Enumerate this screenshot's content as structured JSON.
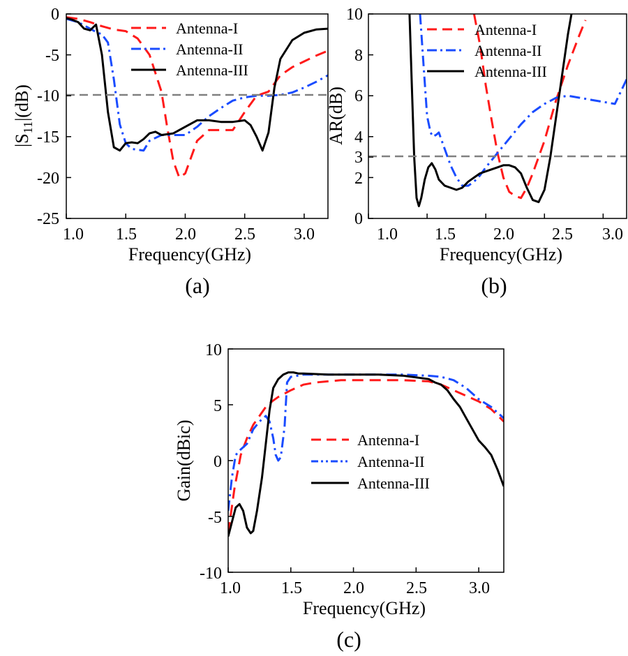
{
  "colors": {
    "antenna_1": "#ff1a1a",
    "antenna_2": "#1a4cff",
    "antenna_3": "#000000",
    "threshold": "#808080"
  },
  "chart_data": [
    {
      "id": "a",
      "type": "line",
      "panel_label": "(a)",
      "xlabel": "Frequency(GHz)",
      "ylabel_main": "|S",
      "ylabel_sub": "11",
      "ylabel_tail": "|(dB)",
      "xlim": [
        1.0,
        3.2
      ],
      "ylim": [
        -25,
        0
      ],
      "xticks": [
        1.0,
        1.5,
        2.0,
        2.5,
        3.0
      ],
      "xtick_labels": [
        "1.0",
        "1.5",
        "2.0",
        "2.5",
        "3.0"
      ],
      "yticks": [
        0,
        -5,
        -10,
        -15,
        -20,
        -25
      ],
      "ytick_labels": [
        "0",
        "-5",
        "-10",
        "-15",
        "-20",
        "-25"
      ],
      "threshold": -10,
      "legend_position": "top-right",
      "series": [
        {
          "name": "Antenna-I",
          "style": "dash",
          "color_key": "antenna_1",
          "x": [
            1.0,
            1.1,
            1.2,
            1.3,
            1.4,
            1.5,
            1.6,
            1.7,
            1.8,
            1.85,
            1.9,
            1.95,
            2.0,
            2.05,
            2.1,
            2.2,
            2.3,
            2.4,
            2.5,
            2.6,
            2.7,
            2.8,
            2.9,
            3.0,
            3.1,
            3.2
          ],
          "y": [
            -0.4,
            -0.6,
            -1.0,
            -1.5,
            -1.9,
            -2.1,
            -3.0,
            -5.0,
            -9.5,
            -14.0,
            -18.0,
            -20.0,
            -19.5,
            -17.5,
            -15.5,
            -14.2,
            -14.2,
            -14.2,
            -12.0,
            -10.0,
            -9.5,
            -7.5,
            -6.5,
            -5.8,
            -5.1,
            -4.5
          ]
        },
        {
          "name": "Antenna-II",
          "style": "dashdot",
          "color_key": "antenna_2",
          "x": [
            1.0,
            1.1,
            1.2,
            1.25,
            1.3,
            1.35,
            1.4,
            1.45,
            1.5,
            1.55,
            1.6,
            1.65,
            1.7,
            1.8,
            1.9,
            2.0,
            2.1,
            2.2,
            2.3,
            2.4,
            2.5,
            2.6,
            2.7,
            2.8,
            2.9,
            3.0,
            3.1,
            3.2
          ],
          "y": [
            -0.6,
            -1.0,
            -1.8,
            -2.2,
            -2.5,
            -3.5,
            -8.0,
            -13.5,
            -15.8,
            -16.5,
            -16.6,
            -16.7,
            -15.5,
            -14.8,
            -14.8,
            -14.8,
            -13.8,
            -12.5,
            -11.5,
            -10.6,
            -10.2,
            -10.0,
            -10.0,
            -9.9,
            -9.6,
            -9.0,
            -8.3,
            -7.5
          ]
        },
        {
          "name": "Antenna-III",
          "style": "solid",
          "color_key": "antenna_3",
          "x": [
            1.0,
            1.05,
            1.1,
            1.15,
            1.2,
            1.25,
            1.3,
            1.35,
            1.4,
            1.45,
            1.5,
            1.55,
            1.6,
            1.65,
            1.7,
            1.75,
            1.8,
            1.9,
            2.0,
            2.1,
            2.2,
            2.3,
            2.4,
            2.5,
            2.55,
            2.6,
            2.65,
            2.7,
            2.75,
            2.8,
            2.9,
            3.0,
            3.1,
            3.2
          ],
          "y": [
            -0.5,
            -0.7,
            -1.0,
            -1.8,
            -2.0,
            -1.3,
            -5.0,
            -12.0,
            -16.3,
            -16.7,
            -15.8,
            -15.7,
            -15.8,
            -15.3,
            -14.6,
            -14.4,
            -14.8,
            -14.6,
            -13.8,
            -13.0,
            -13.0,
            -13.2,
            -13.2,
            -13.0,
            -13.6,
            -15.0,
            -16.7,
            -14.5,
            -9.0,
            -5.5,
            -3.2,
            -2.3,
            -1.9,
            -1.8
          ]
        }
      ]
    },
    {
      "id": "b",
      "type": "line",
      "panel_label": "(b)",
      "xlabel": "Frequency(GHz)",
      "ylabel_main": "AR(dB)",
      "xlim": [
        1.0,
        3.2
      ],
      "ylim": [
        0,
        10
      ],
      "xticks": [
        1.0,
        1.5,
        2.0,
        2.5,
        3.0
      ],
      "xtick_labels": [
        "1.0",
        "1.5",
        "2.0",
        "2.5",
        "3.0"
      ],
      "yticks": [
        0,
        2,
        3,
        4,
        6,
        8,
        10
      ],
      "ytick_labels": [
        "0",
        "2",
        "3",
        "4",
        "6",
        "8",
        "10"
      ],
      "threshold": 3,
      "legend_position": "top-right",
      "series": [
        {
          "name": "Antenna-I",
          "style": "dash",
          "color_key": "antenna_1",
          "x": [
            1.9,
            1.95,
            2.0,
            2.05,
            2.1,
            2.15,
            2.2,
            2.25,
            2.3,
            2.35,
            2.4,
            2.45,
            2.5,
            2.55,
            2.6,
            2.7,
            2.8,
            2.85
          ],
          "y": [
            10.0,
            8.5,
            6.5,
            4.8,
            3.2,
            2.0,
            1.3,
            1.1,
            1.0,
            1.5,
            2.2,
            3.0,
            3.8,
            4.8,
            5.8,
            7.5,
            9.0,
            9.7
          ]
        },
        {
          "name": "Antenna-II",
          "style": "dashdot",
          "color_key": "antenna_2",
          "x": [
            1.44,
            1.47,
            1.5,
            1.53,
            1.55,
            1.58,
            1.6,
            1.65,
            1.7,
            1.75,
            1.8,
            1.85,
            1.9,
            1.95,
            2.0,
            2.1,
            2.2,
            2.3,
            2.4,
            2.5,
            2.6,
            2.7,
            2.8,
            2.9,
            3.0,
            3.1,
            3.2
          ],
          "y": [
            10.0,
            7.5,
            5.0,
            4.2,
            4.0,
            4.1,
            4.2,
            3.4,
            2.6,
            2.0,
            1.6,
            1.6,
            1.8,
            2.1,
            2.5,
            3.2,
            3.9,
            4.6,
            5.2,
            5.6,
            5.9,
            6.0,
            5.9,
            5.8,
            5.7,
            5.6,
            6.8
          ]
        },
        {
          "name": "Antenna-III",
          "style": "solid",
          "color_key": "antenna_3",
          "x": [
            1.35,
            1.37,
            1.39,
            1.41,
            1.43,
            1.45,
            1.48,
            1.51,
            1.54,
            1.57,
            1.6,
            1.65,
            1.7,
            1.75,
            1.8,
            1.85,
            1.9,
            1.95,
            2.0,
            2.05,
            2.1,
            2.15,
            2.2,
            2.25,
            2.3,
            2.35,
            2.4,
            2.45,
            2.5,
            2.55,
            2.6,
            2.65,
            2.7,
            2.73
          ],
          "y": [
            10.0,
            6.5,
            3.0,
            1.0,
            0.6,
            1.0,
            1.9,
            2.5,
            2.7,
            2.4,
            1.9,
            1.6,
            1.5,
            1.4,
            1.5,
            1.8,
            2.0,
            2.2,
            2.3,
            2.4,
            2.5,
            2.6,
            2.6,
            2.5,
            2.2,
            1.5,
            0.9,
            0.8,
            1.4,
            3.0,
            5.0,
            7.0,
            9.0,
            10.0
          ]
        }
      ]
    },
    {
      "id": "c",
      "type": "line",
      "panel_label": "(c)",
      "xlabel": "Frequency(GHz)",
      "ylabel_main": "Gain(dBic)",
      "xlim": [
        1.0,
        3.2
      ],
      "ylim": [
        -10,
        10
      ],
      "xticks": [
        1.0,
        1.5,
        2.0,
        2.5,
        3.0
      ],
      "xtick_labels": [
        "1.0",
        "1.5",
        "2.0",
        "2.5",
        "3.0"
      ],
      "yticks": [
        10,
        5,
        0,
        -5,
        -10
      ],
      "ytick_labels": [
        "10",
        "5",
        "0",
        "-5",
        "-10"
      ],
      "legend_position": "center-right",
      "series": [
        {
          "name": "Antenna-I",
          "style": "dash",
          "color_key": "antenna_1",
          "x": [
            1.0,
            1.05,
            1.1,
            1.15,
            1.2,
            1.25,
            1.3,
            1.35,
            1.4,
            1.45,
            1.5,
            1.6,
            1.7,
            1.8,
            1.9,
            2.0,
            2.2,
            2.4,
            2.6,
            2.7,
            2.8,
            2.9,
            3.0,
            3.1,
            3.2
          ],
          "y": [
            -6.5,
            -2.5,
            0.5,
            2.0,
            3.2,
            4.0,
            4.8,
            5.3,
            5.7,
            6.0,
            6.3,
            6.8,
            7.0,
            7.1,
            7.2,
            7.2,
            7.2,
            7.2,
            7.1,
            6.8,
            6.3,
            5.8,
            5.3,
            4.6,
            3.5
          ]
        },
        {
          "name": "Antenna-II",
          "style": "dashdot",
          "color_key": "antenna_2",
          "x": [
            1.0,
            1.03,
            1.06,
            1.1,
            1.15,
            1.2,
            1.25,
            1.3,
            1.33,
            1.36,
            1.38,
            1.4,
            1.42,
            1.45,
            1.47,
            1.5,
            1.55,
            1.6,
            1.8,
            2.0,
            2.2,
            2.4,
            2.6,
            2.7,
            2.8,
            2.9,
            3.0,
            3.1,
            3.2
          ],
          "y": [
            -4.5,
            -1.5,
            0.5,
            1.0,
            1.5,
            2.8,
            3.5,
            4.0,
            3.5,
            2.0,
            0.5,
            0.0,
            0.3,
            3.0,
            7.0,
            7.5,
            7.6,
            7.7,
            7.7,
            7.7,
            7.7,
            7.7,
            7.6,
            7.5,
            7.2,
            6.5,
            5.5,
            4.8,
            3.8
          ]
        },
        {
          "name": "Antenna-III",
          "style": "solid",
          "color_key": "antenna_3",
          "x": [
            1.0,
            1.03,
            1.06,
            1.09,
            1.12,
            1.15,
            1.18,
            1.2,
            1.23,
            1.27,
            1.3,
            1.33,
            1.36,
            1.4,
            1.44,
            1.48,
            1.52,
            1.56,
            1.6,
            1.8,
            2.0,
            2.2,
            2.4,
            2.6,
            2.65,
            2.7,
            2.75,
            2.8,
            2.85,
            2.9,
            2.95,
            3.0,
            3.05,
            3.1,
            3.15,
            3.2
          ],
          "y": [
            -6.8,
            -5.5,
            -4.2,
            -3.9,
            -4.5,
            -6.0,
            -6.5,
            -6.3,
            -4.5,
            -1.5,
            1.5,
            4.5,
            6.5,
            7.3,
            7.7,
            7.9,
            7.9,
            7.8,
            7.8,
            7.7,
            7.7,
            7.7,
            7.6,
            7.3,
            7.0,
            6.8,
            6.3,
            5.5,
            4.8,
            3.8,
            2.8,
            1.8,
            1.2,
            0.5,
            -0.8,
            -2.3
          ]
        }
      ]
    }
  ]
}
